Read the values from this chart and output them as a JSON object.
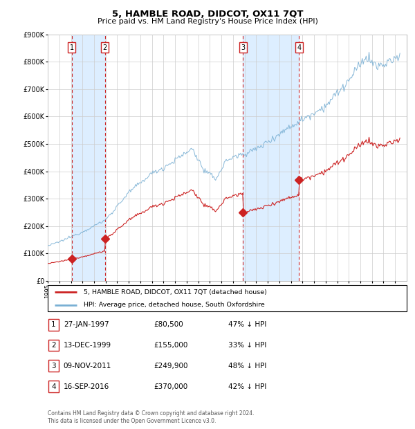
{
  "title": "5, HAMBLE ROAD, DIDCOT, OX11 7QT",
  "subtitle": "Price paid vs. HM Land Registry's House Price Index (HPI)",
  "purchases": [
    {
      "date": "1997-01-27",
      "price": 80500,
      "label": "1"
    },
    {
      "date": "1999-12-13",
      "price": 155000,
      "label": "2"
    },
    {
      "date": "2011-11-09",
      "price": 249900,
      "label": "3"
    },
    {
      "date": "2016-09-16",
      "price": 370000,
      "label": "4"
    }
  ],
  "table_rows": [
    [
      "1",
      "27-JAN-1997",
      "£80,500",
      "47% ↓ HPI"
    ],
    [
      "2",
      "13-DEC-1999",
      "£155,000",
      "33% ↓ HPI"
    ],
    [
      "3",
      "09-NOV-2011",
      "£249,900",
      "48% ↓ HPI"
    ],
    [
      "4",
      "16-SEP-2016",
      "£370,000",
      "42% ↓ HPI"
    ]
  ],
  "legend_property": "5, HAMBLE ROAD, DIDCOT, OX11 7QT (detached house)",
  "legend_hpi": "HPI: Average price, detached house, South Oxfordshire",
  "footer": "Contains HM Land Registry data © Crown copyright and database right 2024.\nThis data is licensed under the Open Government Licence v3.0.",
  "ylim": [
    0,
    900000
  ],
  "yticks": [
    0,
    100000,
    200000,
    300000,
    400000,
    500000,
    600000,
    700000,
    800000,
    900000
  ],
  "ytick_labels": [
    "£0",
    "£100K",
    "£200K",
    "£300K",
    "£400K",
    "£500K",
    "£600K",
    "£700K",
    "£800K",
    "£900K"
  ],
  "hpi_color": "#7ab0d4",
  "property_color": "#cc2222",
  "background_color": "#ffffff",
  "shade_color": "#ddeeff",
  "grid_color": "#cccccc",
  "dashed_line_color": "#cc2222",
  "marker_color": "#cc2222",
  "box_color": "#cc2222",
  "x_start_year": 1995,
  "x_end_year": 2025,
  "purchase_dates": [
    "1997-01-27",
    "1999-12-13",
    "2011-11-09",
    "2016-09-16"
  ],
  "purchase_prices": [
    80500,
    155000,
    249900,
    370000
  ]
}
